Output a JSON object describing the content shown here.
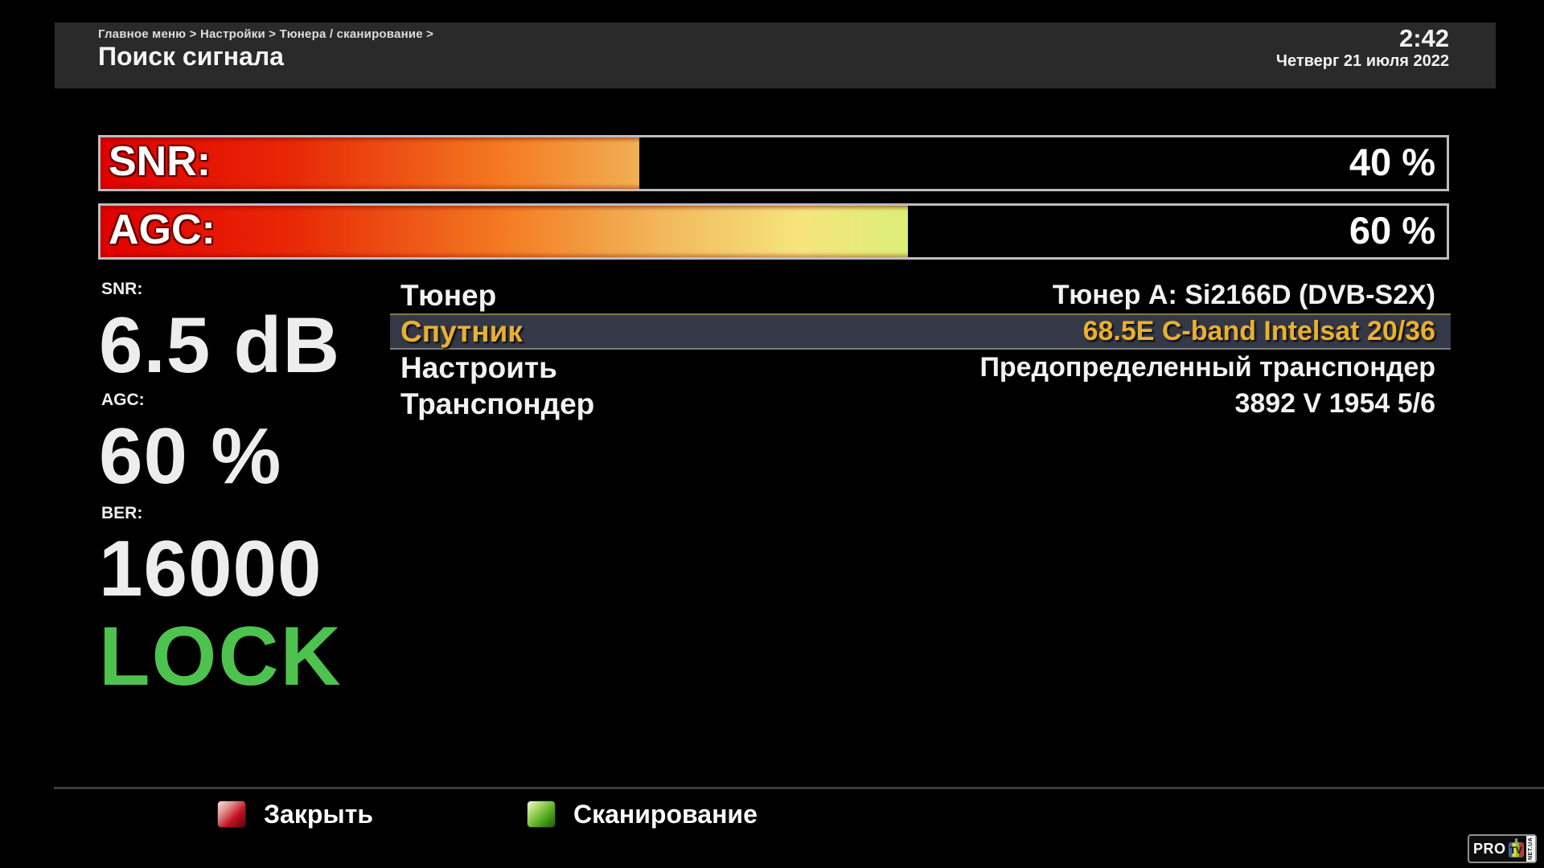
{
  "header": {
    "breadcrumb": "Главное меню > Настройки > Тюнера / сканирование >",
    "title": "Поиск сигнала",
    "time": "2:42",
    "date": "Четверг 21 июля 2022"
  },
  "bars": [
    {
      "label": "SNR:",
      "value_text": "40 %",
      "percent": 40
    },
    {
      "label": "AGC:",
      "value_text": "60 %",
      "percent": 60
    }
  ],
  "stats": [
    {
      "label": "SNR:",
      "value": "6.5 dB"
    },
    {
      "label": "AGC:",
      "value": "60 %"
    },
    {
      "label": "BER:",
      "value": "16000"
    }
  ],
  "lock_status": "LOCK",
  "menu": {
    "rows": [
      {
        "label": "Тюнер",
        "value": "Тюнер A: Si2166D (DVB-S2X)",
        "selected": false
      },
      {
        "label": "Спутник",
        "value": "68.5E C-band Intelsat 20/36",
        "selected": true
      },
      {
        "label": "Настроить",
        "value": "Предопределенный транспондер",
        "selected": false
      },
      {
        "label": "Транспондер",
        "value": "3892 V 1954 5/6",
        "selected": false
      }
    ]
  },
  "footer": {
    "buttons": [
      {
        "key": "red",
        "label": "Закрыть"
      },
      {
        "key": "green",
        "label": "Сканирование"
      }
    ]
  },
  "logo": {
    "pro": "PRO",
    "tv": "TV",
    "net": "NET.UA"
  },
  "colors": {
    "accent-gold": "#e9b02e",
    "lock-green": "#4ec24e",
    "key-red": "#c51322",
    "key-green": "#55aa22",
    "header-bg": "#2a2a2b",
    "selected-row-bg": "#343847"
  }
}
